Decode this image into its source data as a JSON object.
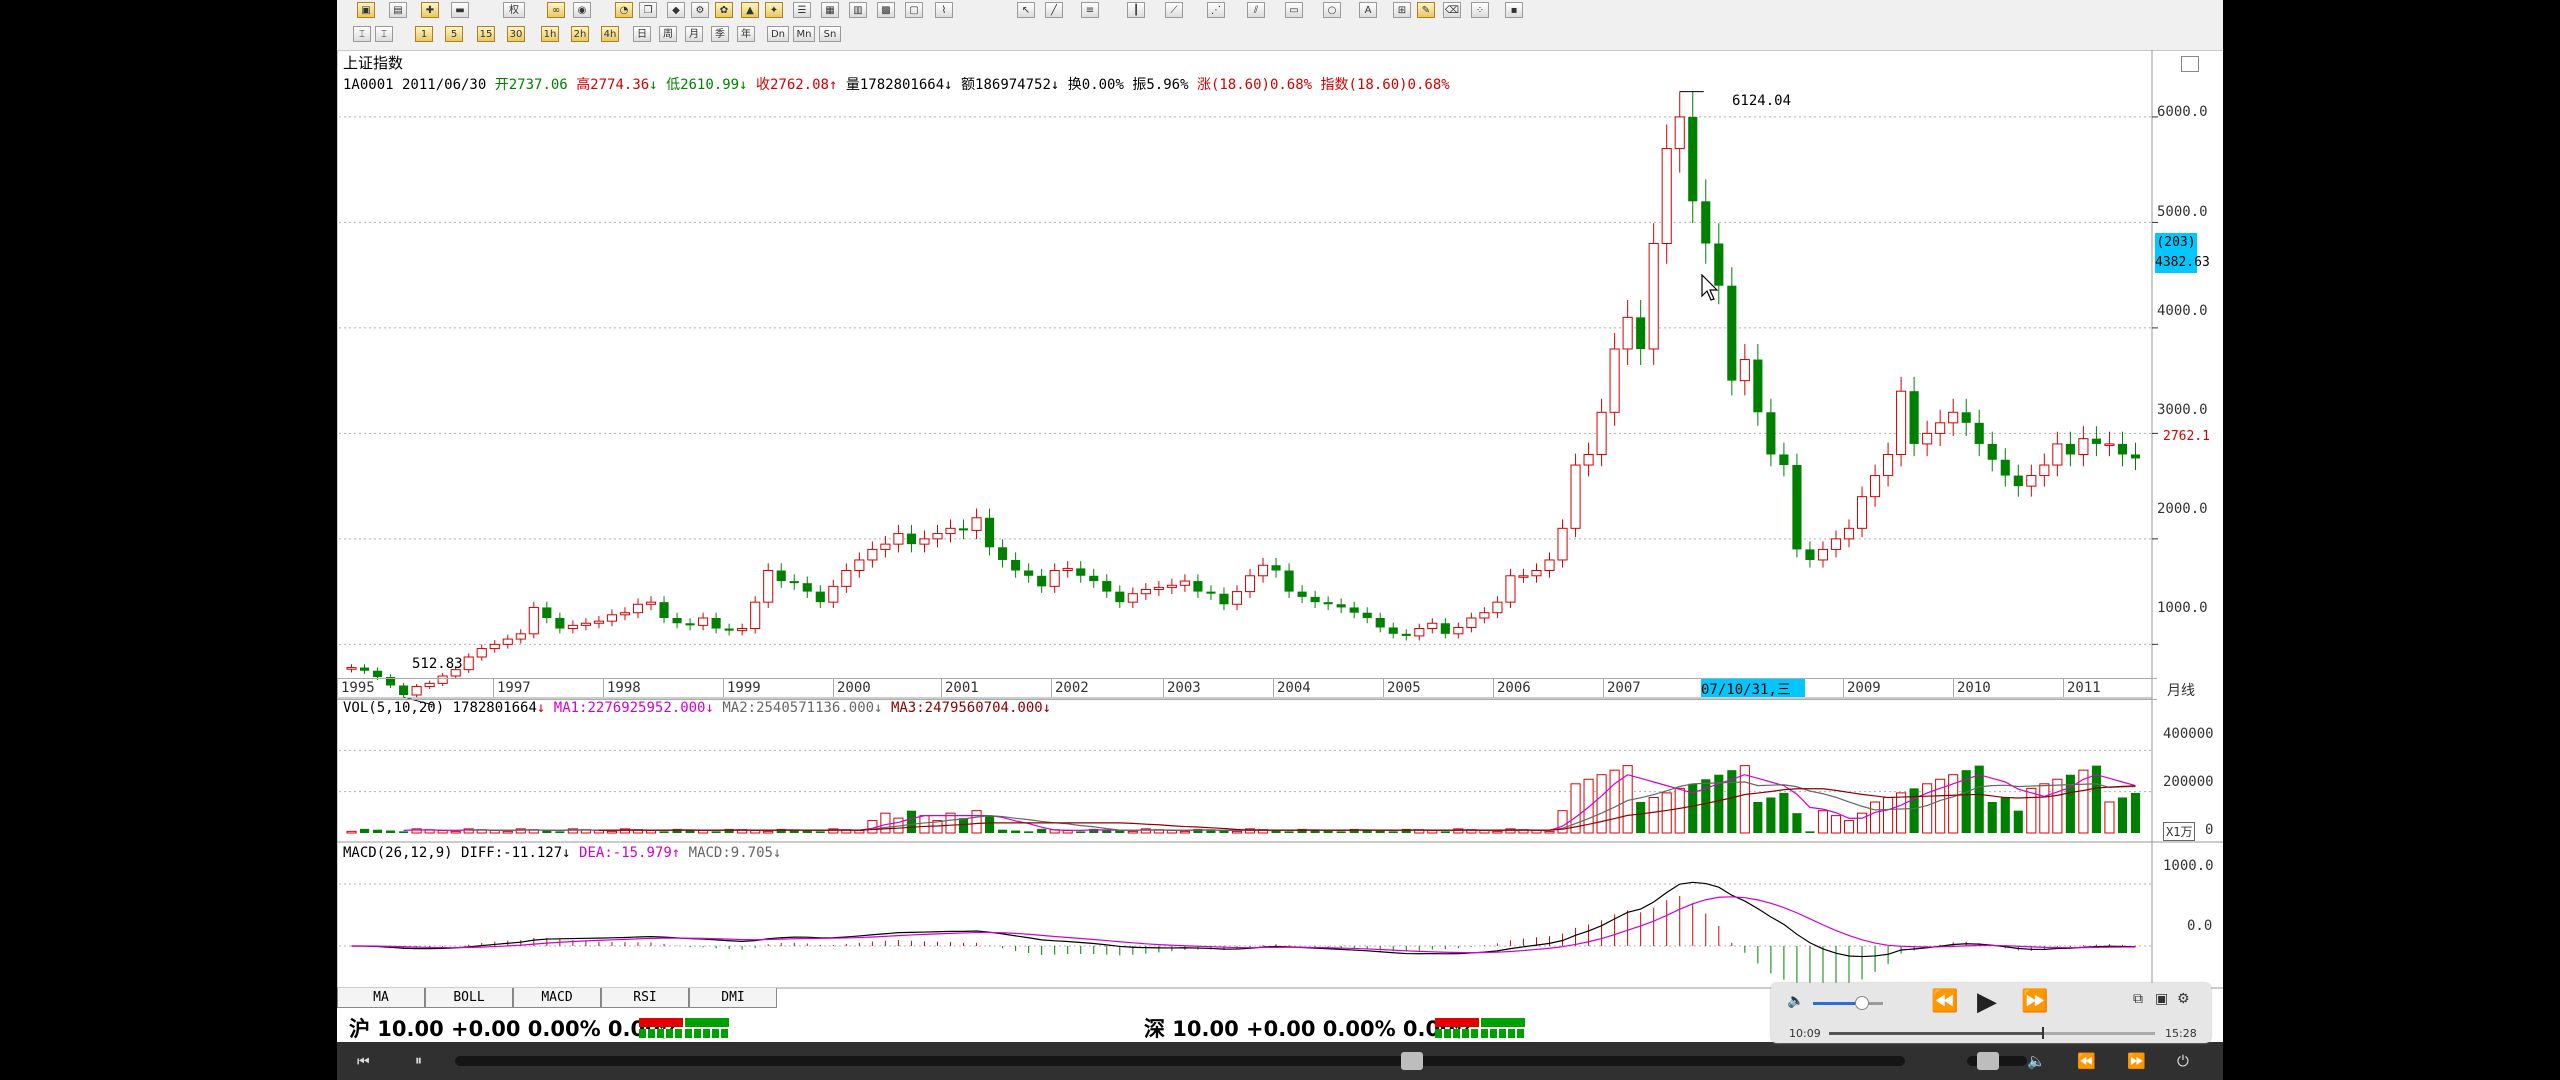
{
  "chart_data": {
    "type": "candlestick",
    "title": "上证指数",
    "info": {
      "code_date": "1A0001 2011/06/30",
      "open": "开2737.06",
      "high": "高2774.36",
      "low": "低2610.99",
      "close": "收2762.08",
      "volume": "量1782801664",
      "amount": "额186974752",
      "turnover": "换0.00%",
      "amplitude": "振5.96%",
      "change": "涨(18.60)0.68%",
      "index_change": "指数(18.60)0.68%"
    },
    "yaxis": [
      "6000.0",
      "5000.0",
      "4000.0",
      "3000.0",
      "2000.0",
      "1000.0"
    ],
    "ylim": [
      700,
      6350
    ],
    "xaxis": [
      "1995",
      "1997",
      "1998",
      "1999",
      "2000",
      "2001",
      "2002",
      "2003",
      "2004",
      "2005",
      "2006",
      "2007",
      "2009",
      "2010",
      "2011"
    ],
    "highlight_date": "07/10/31,三",
    "period": "月线",
    "max_label": "6124.04",
    "min_label": "512.83",
    "cursor_box": {
      "count": "(203)",
      "value": "4382.63"
    },
    "last_price": "2762.1",
    "closes": [
      780,
      750,
      690,
      610,
      520,
      600,
      630,
      700,
      760,
      880,
      960,
      1000,
      1050,
      1100,
      1350,
      1250,
      1150,
      1180,
      1200,
      1220,
      1280,
      1300,
      1380,
      1400,
      1250,
      1200,
      1180,
      1250,
      1150,
      1130,
      1150,
      1400,
      1700,
      1600,
      1580,
      1500,
      1400,
      1550,
      1700,
      1800,
      1900,
      1950,
      2050,
      1950,
      2000,
      2050,
      2100,
      2080,
      2200,
      1920,
      1800,
      1700,
      1650,
      1550,
      1700,
      1720,
      1650,
      1600,
      1500,
      1400,
      1480,
      1520,
      1540,
      1560,
      1600,
      1500,
      1480,
      1380,
      1500,
      1650,
      1750,
      1700,
      1500,
      1450,
      1400,
      1380,
      1350,
      1300,
      1250,
      1160,
      1100,
      1080,
      1150,
      1200,
      1100,
      1160,
      1250,
      1300,
      1400,
      1650,
      1650,
      1700,
      1800,
      2100,
      2700,
      2800,
      3200,
      3800,
      4100,
      3800,
      4800,
      5700,
      6000,
      5200,
      4800,
      4400,
      3500,
      3700,
      3200,
      2800,
      2700,
      1900,
      1800,
      1900,
      2000,
      2100,
      2400,
      2600,
      2800,
      3400,
      2900,
      3000,
      3100,
      3200,
      3100,
      2900,
      2750,
      2600,
      2500,
      2600,
      2700,
      2900,
      2800,
      2950,
      2900,
      2900,
      2800,
      2762
    ],
    "vol": {
      "label": "VOL(5,10,20)",
      "value": "1782801664",
      "ma1": "MA1:2276925952.000",
      "ma2": "MA2:2540571136.000",
      "ma3": "MA3:2479560704.000",
      "yaxis": [
        "400000",
        "200000",
        "0"
      ],
      "unit": "X1万"
    },
    "macd": {
      "label": "MACD(26,12,9)",
      "diff": "DIFF:-11.127",
      "dea": "DEA:-15.979",
      "macd": "MACD:9.705",
      "yaxis": [
        "1000.0",
        "0.0"
      ]
    }
  },
  "tabs": [
    "MA",
    "BOLL",
    "MACD",
    "RSI",
    "DMI"
  ],
  "tickers": {
    "sh": "沪 10.00 +0.00 0.00% 0.00亿",
    "sz": "深 10.00 +0.00 0.00% 0.00亿"
  },
  "toolbar": {
    "rights_label": "权",
    "period_buttons": [
      "日",
      "周",
      "月",
      "季",
      "年",
      "Dn",
      "Mn",
      "Sn"
    ],
    "minute_buttons": [
      "1",
      "5",
      "15",
      "30",
      "1h",
      "2h",
      "4h"
    ]
  },
  "player": {
    "time_elapsed": "10:09",
    "time_total": "15:28",
    "volume_level": 0.7,
    "progress": 0.655
  },
  "colors": {
    "up": "#d40000",
    "down": "#008000",
    "accent": "#00c8ff"
  }
}
